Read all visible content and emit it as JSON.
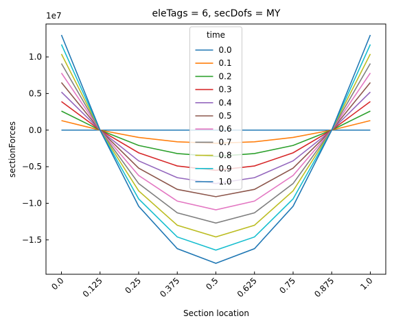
{
  "chart_data": {
    "type": "line",
    "title": "eleTags = 6, secDofs = MY",
    "x_label": "Section location",
    "y_label": "sectionForces",
    "y_offset_label": "1e7",
    "legend_title": "time",
    "legend_position": "upper center",
    "x": [
      0,
      0.125,
      0.25,
      0.375,
      0.5,
      0.625,
      0.75,
      0.875,
      1
    ],
    "xlim": [
      -0.05,
      1.05
    ],
    "xticks": [
      {
        "value": 0,
        "label": "0.0"
      },
      0.125,
      0.25,
      0.375,
      0.5,
      0.625,
      0.75,
      0.875,
      {
        "value": 1,
        "label": "1.0"
      }
    ],
    "ylim": [
      -1.97,
      1.45
    ],
    "yticks": [
      {
        "value": -1.5,
        "label": "−1.5"
      },
      {
        "value": -1,
        "label": "−1.0"
      },
      {
        "value": -0.5,
        "label": "−0.5"
      },
      {
        "value": 0,
        "label": "0.0"
      },
      0.5,
      {
        "value": 1,
        "label": "1.0"
      }
    ],
    "series": [
      {
        "name": "0.0",
        "color": "#1f77b4",
        "values": [
          0,
          0,
          0,
          0,
          0,
          0,
          0,
          0,
          0
        ]
      },
      {
        "name": "0.1",
        "color": "#ff7f0e",
        "values": [
          0.13,
          0,
          -0.1,
          -0.16,
          -0.18,
          -0.16,
          -0.1,
          0,
          0.13
        ]
      },
      {
        "name": "0.2",
        "color": "#2ca02c",
        "values": [
          0.26,
          0,
          -0.21,
          -0.32,
          -0.36,
          -0.32,
          -0.21,
          0,
          0.26
        ]
      },
      {
        "name": "0.3",
        "color": "#d62728",
        "values": [
          0.39,
          0,
          -0.31,
          -0.49,
          -0.55,
          -0.49,
          -0.31,
          0,
          0.39
        ]
      },
      {
        "name": "0.4",
        "color": "#9467bd",
        "values": [
          0.52,
          0,
          -0.42,
          -0.65,
          -0.73,
          -0.65,
          -0.42,
          0,
          0.52
        ]
      },
      {
        "name": "0.5",
        "color": "#8c564b",
        "values": [
          0.65,
          0,
          -0.52,
          -0.81,
          -0.91,
          -0.81,
          -0.52,
          0,
          0.65
        ]
      },
      {
        "name": "0.6",
        "color": "#e377c2",
        "values": [
          0.78,
          0,
          -0.62,
          -0.97,
          -1.09,
          -0.97,
          -0.62,
          0,
          0.78
        ]
      },
      {
        "name": "0.7",
        "color": "#7f7f7f",
        "values": [
          0.91,
          0,
          -0.73,
          -1.13,
          -1.27,
          -1.13,
          -0.73,
          0,
          0.91
        ]
      },
      {
        "name": "0.8",
        "color": "#bcbd22",
        "values": [
          1.04,
          0,
          -0.83,
          -1.3,
          -1.46,
          -1.3,
          -0.83,
          0,
          1.04
        ]
      },
      {
        "name": "0.9",
        "color": "#17becf",
        "values": [
          1.17,
          0,
          -0.94,
          -1.46,
          -1.64,
          -1.46,
          -0.94,
          0,
          1.17
        ]
      },
      {
        "name": "1.0",
        "color": "#1f77b4",
        "values": [
          1.3,
          0,
          -1.04,
          -1.62,
          -1.82,
          -1.62,
          -1.04,
          0,
          1.3
        ]
      }
    ]
  }
}
